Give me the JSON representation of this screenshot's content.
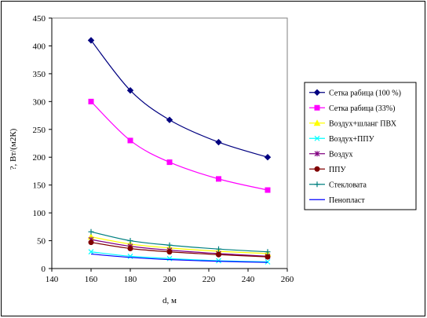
{
  "chart_data": {
    "type": "line",
    "xlabel": "d, м",
    "ylabel": "?, Вт/(м2К)",
    "xlim": [
      140,
      260
    ],
    "ylim": [
      0,
      450
    ],
    "xticks": [
      140,
      160,
      180,
      200,
      220,
      240,
      260
    ],
    "yticks": [
      0,
      50,
      100,
      150,
      200,
      250,
      300,
      350,
      400,
      450
    ],
    "grid": false,
    "legend_position": "right",
    "x": [
      160,
      180,
      200,
      225,
      250
    ],
    "series": [
      {
        "name": "Сетка рабица (100 %)",
        "values": [
          410,
          320,
          267,
          227,
          200
        ],
        "color": "#000080",
        "marker": "diamond"
      },
      {
        "name": "Сетка рабица (33%)",
        "values": [
          300,
          230,
          191,
          161,
          141
        ],
        "color": "#ff00ff",
        "marker": "square"
      },
      {
        "name": "Воздух+шланг ПВХ",
        "values": [
          57,
          44,
          37,
          31,
          27
        ],
        "color": "#ffff00",
        "marker": "triangle"
      },
      {
        "name": "Воздух+ППУ",
        "values": [
          30,
          22,
          18,
          14,
          12
        ],
        "color": "#00ffff",
        "marker": "x"
      },
      {
        "name": "Воздух",
        "values": [
          52,
          40,
          33,
          27,
          22
        ],
        "color": "#800080",
        "marker": "star"
      },
      {
        "name": "ППУ",
        "values": [
          47,
          36,
          30,
          25,
          21
        ],
        "color": "#800000",
        "marker": "circle"
      },
      {
        "name": "Стекловата",
        "values": [
          66,
          50,
          42,
          35,
          30
        ],
        "color": "#008080",
        "marker": "plus"
      },
      {
        "name": "Пенопласт",
        "values": [
          26,
          20,
          16,
          13,
          11
        ],
        "color": "#0000ff",
        "marker": "none"
      }
    ]
  }
}
